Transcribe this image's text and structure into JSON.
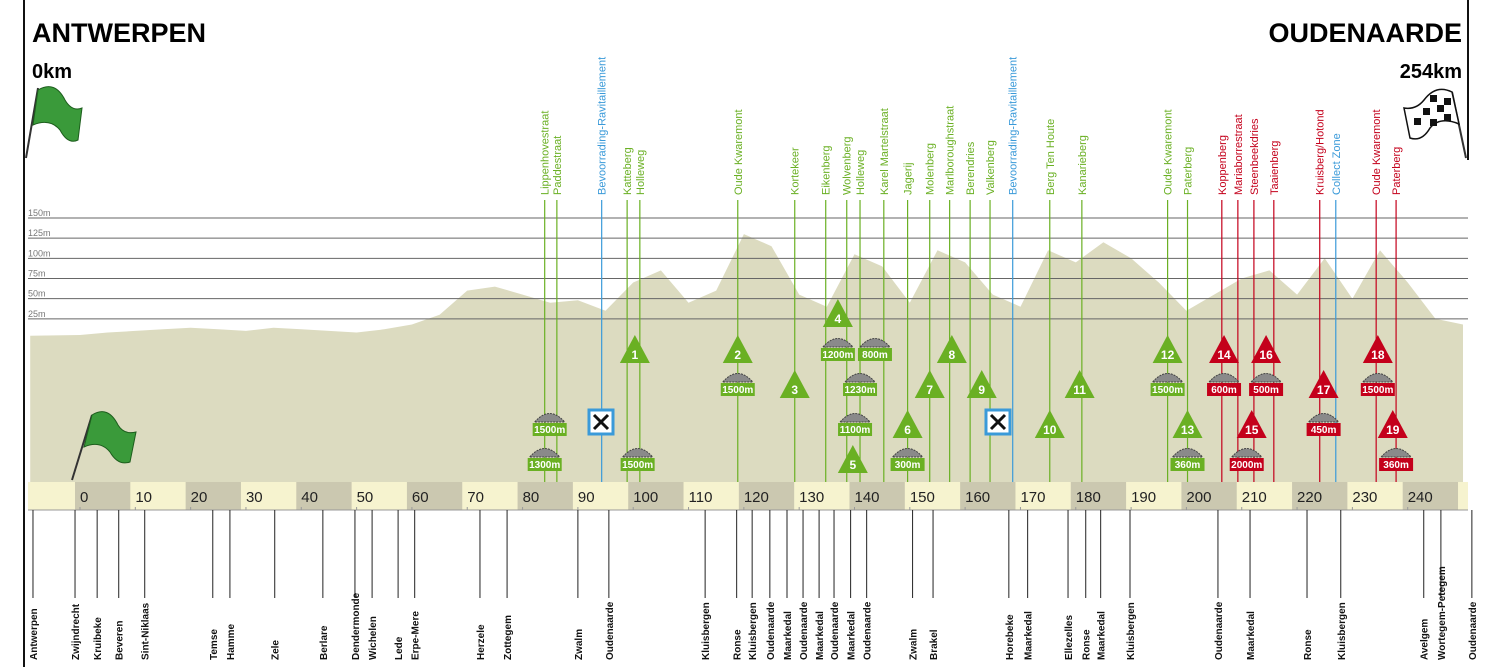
{
  "chart_data": {
    "type": "area",
    "start": {
      "name": "ANTWERPEN",
      "distance": "0km"
    },
    "finish": {
      "name": "OUDENAARDE",
      "distance": "254km"
    },
    "x": [
      -9,
      0,
      5,
      10,
      15,
      20,
      25,
      30,
      35,
      40,
      45,
      50,
      55,
      60,
      65,
      70,
      75,
      80,
      85,
      90,
      95,
      100,
      105,
      110,
      115,
      120,
      125,
      130,
      135,
      140,
      145,
      150,
      155,
      160,
      165,
      170,
      175,
      180,
      185,
      190,
      195,
      200,
      205,
      210,
      215,
      220,
      225,
      230,
      235,
      240,
      245,
      250
    ],
    "values": [
      4,
      5,
      8,
      10,
      12,
      14,
      12,
      10,
      14,
      12,
      10,
      8,
      12,
      18,
      30,
      60,
      65,
      55,
      45,
      48,
      35,
      70,
      85,
      45,
      60,
      130,
      115,
      55,
      40,
      105,
      90,
      45,
      110,
      95,
      55,
      40,
      110,
      95,
      120,
      100,
      70,
      35,
      55,
      75,
      85,
      55,
      100,
      50,
      110,
      70,
      25,
      18
    ],
    "color": "#dcdbc0",
    "xlim": [
      -9.4,
      250.9
    ],
    "ylim": [
      0,
      150
    ],
    "xticks": [
      0,
      10,
      20,
      30,
      40,
      50,
      60,
      70,
      80,
      90,
      100,
      110,
      120,
      130,
      140,
      150,
      160,
      170,
      180,
      190,
      200,
      210,
      220,
      230,
      240
    ],
    "yticks": [
      {
        "value": 25,
        "label": "25m"
      },
      {
        "value": 50,
        "label": "50m"
      },
      {
        "value": 75,
        "label": "75m"
      },
      {
        "value": 100,
        "label": "100m"
      },
      {
        "value": 125,
        "label": "125m"
      },
      {
        "value": 150,
        "label": "150m"
      }
    ],
    "grid": true,
    "top_labels": [
      {
        "text": "Lippenhovestraat",
        "km": 84.0,
        "color": "#6ab023"
      },
      {
        "text": "Paddestraat",
        "km": 86.2,
        "color": "#6ab023"
      },
      {
        "text": "Bevoorrading-Ravitaillement",
        "km": 94.3,
        "color": "#3a9ad9"
      },
      {
        "text": "Katteberg",
        "km": 98.9,
        "color": "#6ab023"
      },
      {
        "text": "Holleweg",
        "km": 101.2,
        "color": "#6ab023"
      },
      {
        "text": "Oude Kwaremont",
        "km": 118.9,
        "color": "#6ab023"
      },
      {
        "text": "Kortekeer",
        "km": 129.2,
        "color": "#6ab023"
      },
      {
        "text": "Eikenberg",
        "km": 134.8,
        "color": "#6ab023"
      },
      {
        "text": "Wolvenberg",
        "km": 138.6,
        "color": "#6ab023"
      },
      {
        "text": "Holleweg",
        "km": 141.0,
        "color": "#6ab023"
      },
      {
        "text": "Karel Martelstraat",
        "km": 145.3,
        "color": "#6ab023"
      },
      {
        "text": "Jagerij",
        "km": 149.6,
        "color": "#6ab023"
      },
      {
        "text": "Molenberg",
        "km": 153.6,
        "color": "#6ab023"
      },
      {
        "text": "Marlboroughstraat",
        "km": 157.2,
        "color": "#6ab023"
      },
      {
        "text": "Berendries",
        "km": 160.9,
        "color": "#6ab023"
      },
      {
        "text": "Valkenberg",
        "km": 164.5,
        "color": "#6ab023"
      },
      {
        "text": "Bevoorrading-Ravitaillement",
        "km": 168.6,
        "color": "#3a9ad9"
      },
      {
        "text": "Berg Ten Houte",
        "km": 175.3,
        "color": "#6ab023"
      },
      {
        "text": "Kanarieberg",
        "km": 181.1,
        "color": "#6ab023"
      },
      {
        "text": "Oude Kwaremont",
        "km": 196.6,
        "color": "#6ab023"
      },
      {
        "text": "Paterberg",
        "km": 200.2,
        "color": "#6ab023"
      },
      {
        "text": "Koppenberg",
        "km": 206.4,
        "color": "#c4001b"
      },
      {
        "text": "Mariaborrestraat",
        "km": 209.3,
        "color": "#c4001b"
      },
      {
        "text": "Steenbeekdries",
        "km": 212.2,
        "color": "#c4001b"
      },
      {
        "text": "Taaienberg",
        "km": 215.8,
        "color": "#c4001b"
      },
      {
        "text": "Kruisberg/Hotond",
        "km": 224.1,
        "color": "#c4001b"
      },
      {
        "text": "Collect Zone",
        "km": 227.0,
        "color": "#3a9ad9"
      },
      {
        "text": "Oude Kwaremont",
        "km": 234.3,
        "color": "#c4001b"
      },
      {
        "text": "Paterberg",
        "km": 237.9,
        "color": "#c4001b"
      }
    ],
    "climbs": [
      {
        "number": 1,
        "km": 100.3,
        "color": "#6ab023"
      },
      {
        "number": 2,
        "km": 118.9,
        "color": "#6ab023"
      },
      {
        "number": 3,
        "km": 129.2,
        "color": "#6ab023"
      },
      {
        "number": 4,
        "km": 137.0,
        "color": "#6ab023"
      },
      {
        "number": 5,
        "km": 139.7,
        "color": "#6ab023"
      },
      {
        "number": 6,
        "km": 149.6,
        "color": "#6ab023"
      },
      {
        "number": 7,
        "km": 153.6,
        "color": "#6ab023"
      },
      {
        "number": 8,
        "km": 157.6,
        "color": "#6ab023"
      },
      {
        "number": 9,
        "km": 163.0,
        "color": "#6ab023"
      },
      {
        "number": 10,
        "km": 175.3,
        "color": "#6ab023"
      },
      {
        "number": 11,
        "km": 180.7,
        "color": "#6ab023"
      },
      {
        "number": 12,
        "km": 196.6,
        "color": "#6ab023"
      },
      {
        "number": 13,
        "km": 200.2,
        "color": "#6ab023"
      },
      {
        "number": 14,
        "km": 206.8,
        "color": "#c4001b"
      },
      {
        "number": 15,
        "km": 211.8,
        "color": "#c4001b"
      },
      {
        "number": 16,
        "km": 214.4,
        "color": "#c4001b"
      },
      {
        "number": 17,
        "km": 224.8,
        "color": "#c4001b"
      },
      {
        "number": 18,
        "km": 234.6,
        "color": "#c4001b"
      },
      {
        "number": 19,
        "km": 237.3,
        "color": "#c4001b"
      }
    ],
    "cobbles": [
      {
        "label": "1500m",
        "km": 84.9,
        "color": "#6ab023"
      },
      {
        "label": "1300m",
        "km": 84.0,
        "color": "#6ab023"
      },
      {
        "label": "1500m",
        "km": 100.8,
        "color": "#6ab023"
      },
      {
        "label": "1500m",
        "km": 118.9,
        "color": "#6ab023"
      },
      {
        "label": "1200m",
        "km": 137.0,
        "color": "#6ab023"
      },
      {
        "label": "800m",
        "km": 143.7,
        "color": "#6ab023"
      },
      {
        "label": "1230m",
        "km": 141.0,
        "color": "#6ab023"
      },
      {
        "label": "1100m",
        "km": 140.1,
        "color": "#6ab023"
      },
      {
        "label": "300m",
        "km": 149.6,
        "color": "#6ab023"
      },
      {
        "label": "1500m",
        "km": 196.6,
        "color": "#6ab023"
      },
      {
        "label": "360m",
        "km": 200.2,
        "color": "#6ab023"
      },
      {
        "label": "600m",
        "km": 206.8,
        "color": "#c4001b"
      },
      {
        "label": "2000m",
        "km": 210.9,
        "color": "#c4001b"
      },
      {
        "label": "500m",
        "km": 214.4,
        "color": "#c4001b"
      },
      {
        "label": "450m",
        "km": 224.8,
        "color": "#c4001b"
      },
      {
        "label": "1500m",
        "km": 234.6,
        "color": "#c4001b"
      },
      {
        "label": "360m",
        "km": 237.9,
        "color": "#c4001b"
      }
    ],
    "towns": [
      {
        "name": "Antwerpen",
        "km": -8.5
      },
      {
        "name": "Zwijndrecht",
        "km": -0.9
      },
      {
        "name": "Kruibeke",
        "km": 3.1
      },
      {
        "name": "Beveren",
        "km": 7.0
      },
      {
        "name": "Sint-Niklaas",
        "km": 11.7
      },
      {
        "name": "Temse",
        "km": 24.0
      },
      {
        "name": "Hamme",
        "km": 27.1
      },
      {
        "name": "Zele",
        "km": 35.2
      },
      {
        "name": "Berlare",
        "km": 43.9
      },
      {
        "name": "Dendermonde",
        "km": 49.7
      },
      {
        "name": "Wichelen",
        "km": 52.8
      },
      {
        "name": "Lede",
        "km": 57.5
      },
      {
        "name": "Erpe-Mere",
        "km": 60.5
      },
      {
        "name": "Herzele",
        "km": 72.3
      },
      {
        "name": "Zottegem",
        "km": 77.2
      },
      {
        "name": "Zwalm",
        "km": 90.0
      },
      {
        "name": "Oudenaarde",
        "km": 95.6
      },
      {
        "name": "Kluisbergen",
        "km": 113.0
      },
      {
        "name": "Ronse",
        "km": 118.7
      },
      {
        "name": "Kluisbergen",
        "km": 121.5
      },
      {
        "name": "Oudenaarde",
        "km": 124.7
      },
      {
        "name": "Maarkedal",
        "km": 127.8
      },
      {
        "name": "Oudenaarde",
        "km": 130.7
      },
      {
        "name": "Maarkedal",
        "km": 133.6
      },
      {
        "name": "Oudenaarde",
        "km": 136.3
      },
      {
        "name": "Maarkedal",
        "km": 139.3
      },
      {
        "name": "Oudenaarde",
        "km": 142.2
      },
      {
        "name": "Zwalm",
        "km": 150.5
      },
      {
        "name": "Brakel",
        "km": 154.2
      },
      {
        "name": "Horebeke",
        "km": 167.9
      },
      {
        "name": "Maarkedal",
        "km": 171.3
      },
      {
        "name": "Ellezelles",
        "km": 178.6
      },
      {
        "name": "Ronse",
        "km": 181.8
      },
      {
        "name": "Maarkedal",
        "km": 184.5
      },
      {
        "name": "Kluisbergen",
        "km": 189.8
      },
      {
        "name": "Oudenaarde",
        "km": 205.7
      },
      {
        "name": "Maarkedal",
        "km": 211.5
      },
      {
        "name": "Ronse",
        "km": 221.8
      },
      {
        "name": "Kluisbergen",
        "km": 227.9
      },
      {
        "name": "Avelgem",
        "km": 242.9
      },
      {
        "name": "Wortegem-Petegem",
        "km": 246.0
      },
      {
        "name": "Oudenaarde",
        "km": 251.6
      }
    ]
  }
}
